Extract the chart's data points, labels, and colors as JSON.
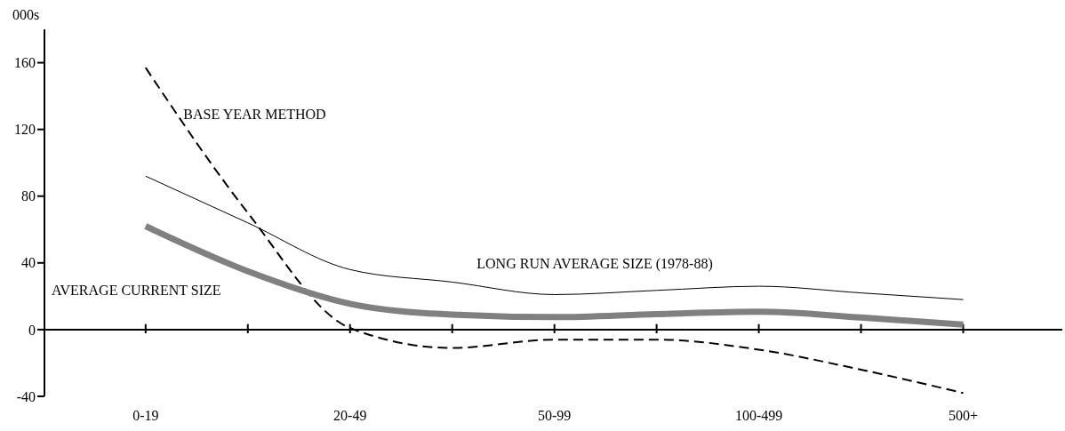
{
  "chart_data": {
    "type": "line",
    "ylabel": "000s",
    "categories": [
      "0-19",
      null,
      "20-49",
      null,
      "50-99",
      null,
      "100-499",
      null,
      "500+"
    ],
    "ylim": [
      -40,
      180
    ],
    "yticks": [
      -40,
      0,
      40,
      80,
      120,
      160
    ],
    "series": [
      {
        "name": "BASE YEAR METHOD",
        "color": "#000000",
        "line_style": "dashed",
        "values": [
          157,
          70,
          1,
          -11,
          -6,
          -6,
          -12,
          -24,
          -38
        ]
      },
      {
        "name": "LONG RUN AVERAGE SIZE (1978-88)",
        "color": "#000000",
        "line_style": "solid",
        "values": [
          92,
          64,
          36,
          28.5,
          21,
          23.5,
          26,
          22,
          18
        ]
      },
      {
        "name": "AVERAGE CURRENT SIZE",
        "color": "#808080",
        "line_style": "solid",
        "values": [
          62,
          35,
          15.5,
          9,
          7.5,
          9.3,
          10.7,
          7.3,
          3
        ]
      }
    ]
  }
}
